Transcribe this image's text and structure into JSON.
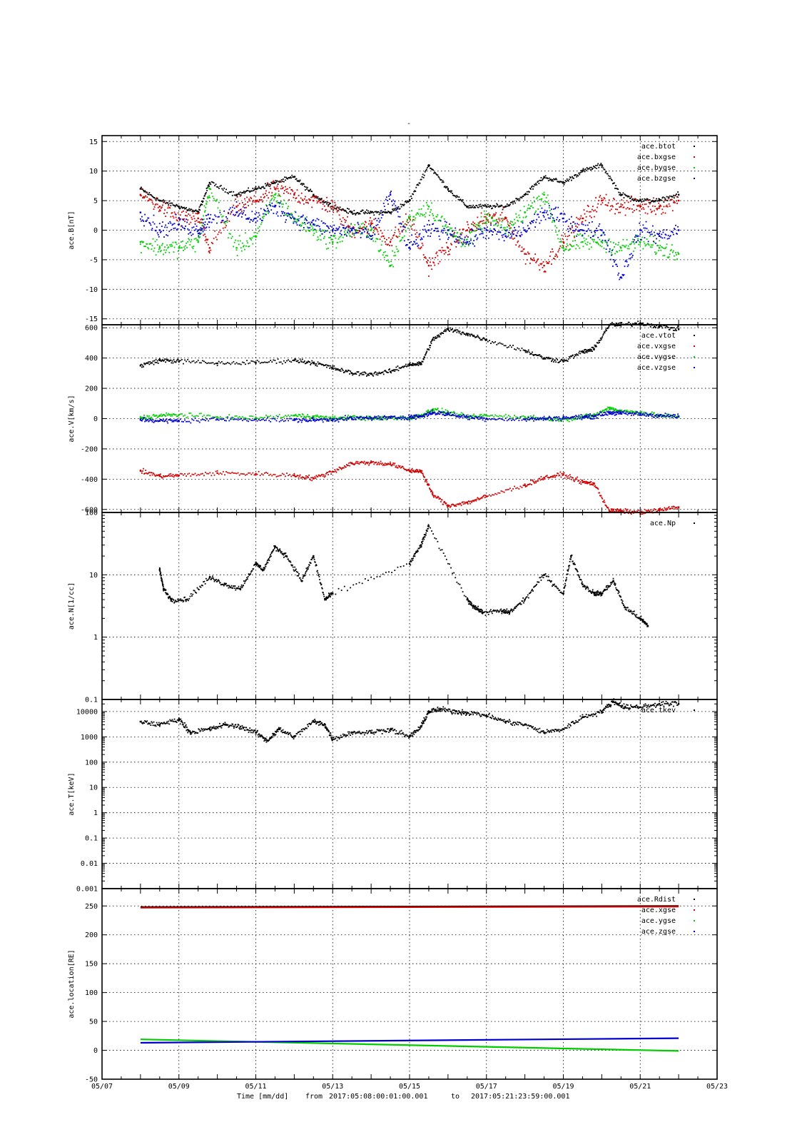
{
  "figure": {
    "title": "-",
    "xlabel": "Time [mm/dd]",
    "range_prefix": "from",
    "range_start": "2017:05:08:00:01:00.001",
    "range_to": "to",
    "range_end": "2017:05:21:23:59:00.001"
  },
  "chart_data": [
    {
      "type": "scatter",
      "ylabel": "ace.B[nT]",
      "x_unit": "day of May 2017",
      "xlim": [
        7,
        23
      ],
      "ylim": [
        -16,
        16
      ],
      "yscale": "linear",
      "yticks": [
        -15,
        -10,
        -5,
        0,
        5,
        10,
        15
      ],
      "ytick_labels": [
        "-15",
        "-10",
        "-5",
        "0",
        "5",
        "10",
        "15"
      ],
      "grid": true,
      "legend_position": "top-right",
      "series": [
        {
          "name": "ace.btot",
          "color": "#000000",
          "x": [
            8.0,
            8.5,
            9.0,
            9.5,
            9.8,
            10.5,
            11.0,
            11.5,
            12.0,
            12.5,
            13.0,
            13.5,
            14.0,
            14.5,
            15.0,
            15.5,
            16.0,
            16.5,
            17.0,
            17.5,
            18.0,
            18.5,
            19.0,
            19.5,
            20.0,
            20.5,
            21.0,
            21.5,
            22.0
          ],
          "y": [
            7,
            5,
            4,
            3,
            8,
            6,
            7,
            8,
            9,
            6,
            4,
            3,
            3,
            3,
            5,
            11,
            7,
            4,
            4,
            4,
            6,
            9,
            8,
            10,
            11,
            6,
            5,
            5,
            6
          ]
        },
        {
          "name": "ace.bxgse",
          "color": "#cc0000",
          "x": [
            8.0,
            8.5,
            9.0,
            9.5,
            9.8,
            10.5,
            11.0,
            11.5,
            12.0,
            12.5,
            13.0,
            13.5,
            14.0,
            14.5,
            15.0,
            15.5,
            16.0,
            16.5,
            17.0,
            17.5,
            18.0,
            18.5,
            19.0,
            19.5,
            20.0,
            20.5,
            21.0,
            21.5,
            22.0
          ],
          "y": [
            6,
            4,
            2,
            2,
            -3,
            4,
            5,
            7,
            6,
            5,
            4,
            0,
            1,
            -2,
            2,
            -6,
            -3,
            0,
            2,
            2,
            -4,
            -6,
            -2,
            2,
            5,
            4,
            4,
            4,
            5
          ]
        },
        {
          "name": "ace.bygse",
          "color": "#00cc00",
          "x": [
            8.0,
            8.5,
            9.0,
            9.5,
            9.8,
            10.5,
            11.0,
            11.5,
            12.0,
            12.5,
            13.0,
            13.5,
            14.0,
            14.5,
            15.0,
            15.5,
            16.0,
            16.5,
            17.0,
            17.5,
            18.0,
            18.5,
            19.0,
            19.5,
            20.0,
            20.5,
            21.0,
            21.5,
            22.0
          ],
          "y": [
            -2,
            -3,
            -3,
            -2,
            7,
            -3,
            -1,
            6,
            2,
            0,
            -2,
            0,
            0,
            -6,
            2,
            4,
            0,
            -2,
            2,
            0,
            3,
            6,
            -3,
            -2,
            -2,
            -3,
            -2,
            -3,
            -4
          ]
        },
        {
          "name": "ace.bzgse",
          "color": "#0000cc",
          "x": [
            8.0,
            8.5,
            9.0,
            9.5,
            9.8,
            10.5,
            11.0,
            11.5,
            12.0,
            12.5,
            13.0,
            13.5,
            14.0,
            14.5,
            15.0,
            15.5,
            16.0,
            16.5,
            17.0,
            17.5,
            18.0,
            18.5,
            19.0,
            19.5,
            20.0,
            20.5,
            21.0,
            21.5,
            22.0
          ],
          "y": [
            3,
            0,
            1,
            0,
            2,
            3,
            2,
            4,
            2,
            1,
            0,
            0,
            -1,
            6,
            -3,
            0,
            0,
            -2,
            0,
            -1,
            0,
            3,
            2,
            0,
            0,
            -8,
            0,
            -1,
            0
          ]
        }
      ]
    },
    {
      "type": "scatter",
      "ylabel": "ace.V[km/s]",
      "x_unit": "day of May 2017",
      "xlim": [
        7,
        23
      ],
      "ylim": [
        -620,
        620
      ],
      "yscale": "linear",
      "yticks": [
        -600,
        -400,
        -200,
        0,
        200,
        400,
        600
      ],
      "ytick_labels": [
        "-600",
        "-400",
        "-200",
        "0",
        "200",
        "400",
        "600"
      ],
      "grid": true,
      "legend_position": "top-right",
      "series": [
        {
          "name": "ace.vtot",
          "color": "#000000",
          "x": [
            8.0,
            8.5,
            9.0,
            10.0,
            11.0,
            12.0,
            12.5,
            13.0,
            13.5,
            14.0,
            14.5,
            15.0,
            15.3,
            15.6,
            16.0,
            16.5,
            17.0,
            18.0,
            18.5,
            19.0,
            19.5,
            19.8,
            20.2,
            20.5,
            21.0,
            21.5,
            22.0
          ],
          "y": [
            350,
            385,
            380,
            365,
            370,
            385,
            370,
            335,
            300,
            295,
            310,
            360,
            360,
            520,
            590,
            560,
            520,
            450,
            400,
            380,
            440,
            460,
            620,
            620,
            630,
            610,
            590
          ]
        },
        {
          "name": "ace.vxgse",
          "color": "#cc0000",
          "x": [
            8.0,
            8.5,
            9.0,
            10.0,
            11.0,
            12.0,
            12.5,
            13.0,
            13.5,
            14.0,
            14.5,
            15.0,
            15.3,
            15.6,
            16.0,
            16.5,
            17.0,
            18.0,
            18.5,
            19.0,
            19.5,
            19.8,
            20.2,
            20.5,
            21.0,
            21.5,
            22.0
          ],
          "y": [
            -345,
            -380,
            -375,
            -360,
            -365,
            -375,
            -395,
            -350,
            -295,
            -290,
            -300,
            -345,
            -345,
            -500,
            -575,
            -555,
            -515,
            -440,
            -390,
            -370,
            -420,
            -430,
            -610,
            -610,
            -620,
            -605,
            -585
          ]
        },
        {
          "name": "ace.vygse",
          "color": "#00cc00",
          "x": [
            8.0,
            8.5,
            9.0,
            10.0,
            11.0,
            12.0,
            12.5,
            13.0,
            13.5,
            14.0,
            14.5,
            15.0,
            15.3,
            15.6,
            16.0,
            16.5,
            17.0,
            18.0,
            18.5,
            19.0,
            19.5,
            19.8,
            20.2,
            20.5,
            21.0,
            21.5,
            22.0
          ],
          "y": [
            5,
            20,
            25,
            10,
            5,
            20,
            15,
            0,
            10,
            0,
            5,
            5,
            20,
            60,
            40,
            10,
            20,
            10,
            0,
            -5,
            10,
            20,
            70,
            50,
            40,
            20,
            10
          ]
        },
        {
          "name": "ace.vzgse",
          "color": "#0000cc",
          "x": [
            8.0,
            8.5,
            9.0,
            10.0,
            11.0,
            12.0,
            12.5,
            13.0,
            13.5,
            14.0,
            14.5,
            15.0,
            15.3,
            15.6,
            16.0,
            16.5,
            17.0,
            18.0,
            18.5,
            19.0,
            19.5,
            19.8,
            20.2,
            20.5,
            21.0,
            21.5,
            22.0
          ],
          "y": [
            -5,
            -15,
            -15,
            -5,
            -5,
            -10,
            -10,
            -5,
            0,
            5,
            5,
            10,
            15,
            40,
            30,
            10,
            0,
            -5,
            0,
            5,
            10,
            15,
            40,
            35,
            30,
            20,
            15
          ]
        }
      ]
    },
    {
      "type": "scatter",
      "ylabel": "ace.N[1/cc]",
      "x_unit": "day of May 2017",
      "xlim": [
        7,
        23
      ],
      "ylim": [
        0.1,
        100
      ],
      "yscale": "log",
      "yticks": [
        0.1,
        1,
        10,
        100
      ],
      "ytick_labels": [
        "0.1",
        "1",
        "10",
        "100"
      ],
      "grid": true,
      "legend_position": "top-right",
      "series": [
        {
          "name": "ace.Np",
          "color": "#000000",
          "x": [
            8.5,
            8.6,
            8.8,
            9.2,
            9.8,
            10.2,
            10.6,
            11.0,
            11.2,
            11.5,
            11.8,
            12.2,
            12.5,
            12.8,
            13.0,
            15.0,
            15.3,
            15.5,
            16.5,
            16.7,
            16.9,
            17.4,
            17.6,
            18.0,
            18.5,
            19.0,
            19.2,
            19.5,
            19.8,
            20.0,
            20.3,
            20.6,
            21.0,
            21.2
          ],
          "y": [
            12,
            6,
            4,
            4,
            9,
            7,
            6,
            15,
            12,
            28,
            20,
            8,
            20,
            4,
            5,
            15,
            30,
            60,
            4,
            3,
            2.5,
            2.6,
            2.5,
            4,
            10,
            5,
            20,
            7,
            5,
            5,
            8,
            3,
            2,
            1.5
          ]
        }
      ]
    },
    {
      "type": "scatter",
      "ylabel": "ace.T[keV]",
      "x_unit": "day of May 2017",
      "xlim": [
        7,
        23
      ],
      "ylim": [
        0.001,
        30000
      ],
      "yscale": "log",
      "yticks": [
        0.001,
        0.01,
        0.1,
        1,
        10,
        100,
        1000,
        10000
      ],
      "ytick_labels": [
        "0.001",
        "0.01",
        "0.1",
        "1",
        "10",
        "100",
        "1000",
        "10000"
      ],
      "grid": true,
      "legend_position": "top-right",
      "series": [
        {
          "name": "ace.tkev",
          "color": "#000000",
          "x": [
            8.0,
            8.5,
            9.0,
            9.3,
            9.8,
            10.2,
            10.6,
            11.0,
            11.3,
            11.6,
            12.0,
            12.5,
            12.8,
            13.0,
            13.5,
            14.0,
            14.5,
            15.0,
            15.3,
            15.5,
            15.8,
            16.2,
            16.5,
            17.0,
            17.5,
            18.0,
            18.5,
            19.0,
            19.5,
            20.0,
            20.3,
            20.6,
            21.0,
            21.5,
            22.0
          ],
          "y": [
            4000,
            3000,
            5000,
            1500,
            2000,
            3000,
            2500,
            1500,
            700,
            2000,
            1000,
            4000,
            3000,
            800,
            1500,
            1500,
            2000,
            1000,
            2500,
            10000,
            12000,
            10000,
            9000,
            7000,
            4000,
            3000,
            1500,
            2000,
            6000,
            10000,
            25000,
            15000,
            15000,
            20000,
            20000
          ]
        }
      ]
    },
    {
      "type": "line",
      "ylabel": "ace.location[RE]",
      "x_unit": "day of May 2017",
      "xlim": [
        7,
        23
      ],
      "ylim": [
        -50,
        280
      ],
      "yscale": "linear",
      "yticks": [
        -50,
        0,
        50,
        100,
        150,
        200,
        250
      ],
      "ytick_labels": [
        "-50",
        "0",
        "50",
        "100",
        "150",
        "200",
        "250"
      ],
      "xticks": [
        7,
        9,
        11,
        13,
        15,
        17,
        19,
        21,
        23
      ],
      "xtick_labels": [
        "05/07",
        "05/09",
        "05/11",
        "05/13",
        "05/15",
        "05/17",
        "05/19",
        "05/21",
        "05/23"
      ],
      "grid": true,
      "legend_position": "top-right",
      "series": [
        {
          "name": "ace.Rdist",
          "color": "#000000",
          "x": [
            8,
            22
          ],
          "y": [
            248,
            250
          ]
        },
        {
          "name": "ace.xgse",
          "color": "#cc0000",
          "x": [
            8,
            22
          ],
          "y": [
            247,
            249
          ]
        },
        {
          "name": "ace.ygse",
          "color": "#00cc00",
          "x": [
            8,
            22
          ],
          "y": [
            19,
            -1
          ]
        },
        {
          "name": "ace.zgse",
          "color": "#0000cc",
          "x": [
            8,
            22
          ],
          "y": [
            13,
            21
          ]
        }
      ]
    }
  ]
}
